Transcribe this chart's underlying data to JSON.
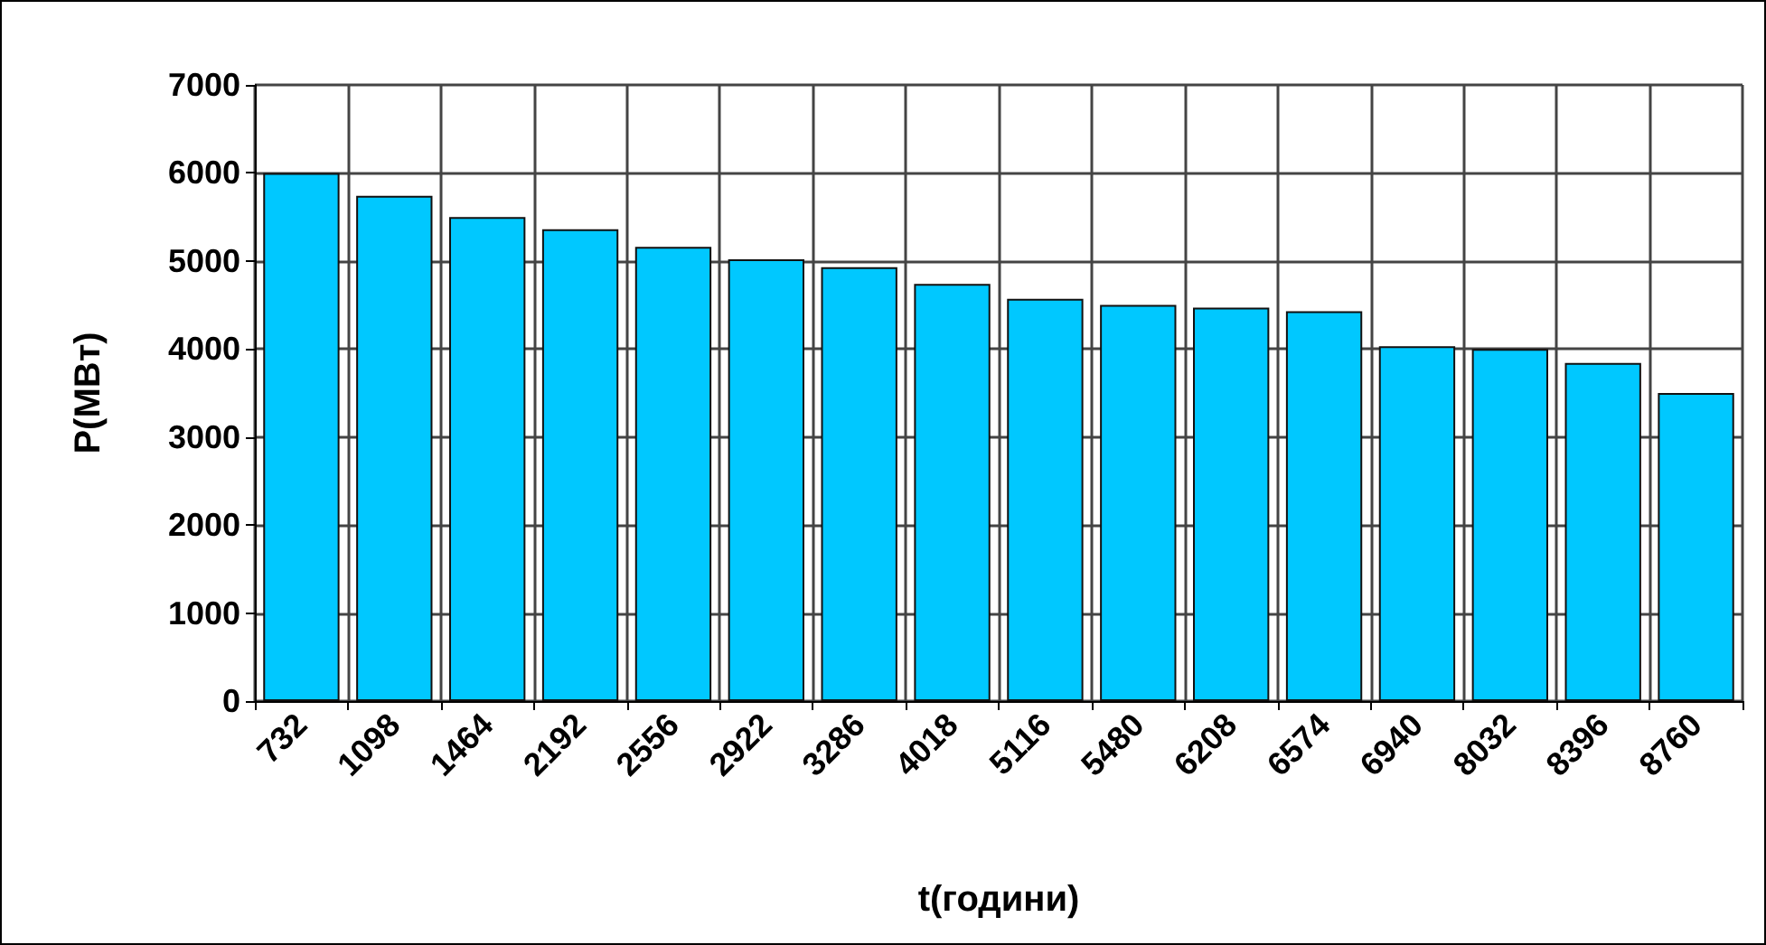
{
  "chart_data": {
    "type": "bar",
    "xlabel": "t(години)",
    "ylabel": "P(MBт)",
    "categories": [
      "732",
      "1098",
      "1464",
      "2192",
      "2556",
      "2922",
      "3286",
      "4018",
      "5116",
      "5480",
      "6208",
      "6574",
      "6940",
      "8032",
      "8396",
      "8760"
    ],
    "values": [
      6000,
      5740,
      5500,
      5360,
      5160,
      5020,
      4930,
      4740,
      4570,
      4500,
      4470,
      4430,
      4030,
      4000,
      3840,
      3500
    ],
    "color": "#00c8ff",
    "ylim": [
      0,
      7000
    ],
    "yticks": [
      0,
      1000,
      2000,
      3000,
      4000,
      5000,
      6000,
      7000
    ],
    "grid": true
  }
}
